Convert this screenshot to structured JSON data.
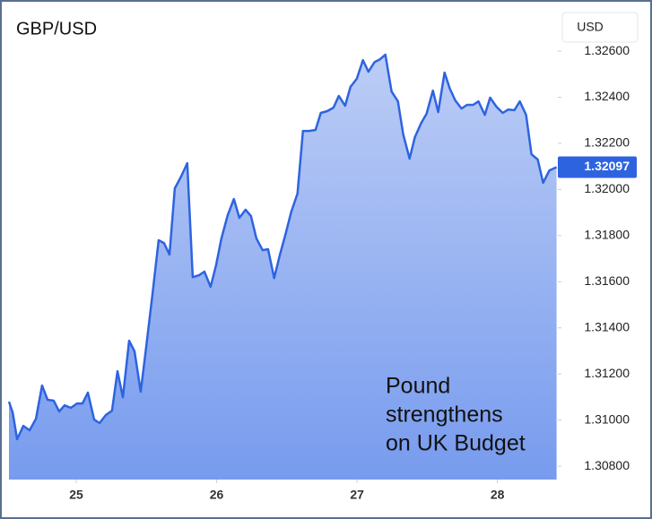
{
  "chart_data": {
    "type": "area",
    "title": "GBP/USD",
    "currency_button": "USD",
    "annotation": [
      "Pound",
      "strengthens",
      "on UK Budget"
    ],
    "x": [
      24.521,
      24.547,
      24.579,
      24.623,
      24.668,
      24.713,
      24.757,
      24.796,
      24.84,
      24.879,
      24.917,
      24.962,
      25.006,
      25.045,
      25.083,
      25.128,
      25.166,
      25.211,
      25.255,
      25.294,
      25.332,
      25.377,
      25.415,
      25.459,
      25.498,
      25.542,
      25.587,
      25.625,
      25.664,
      25.702,
      25.747,
      25.791,
      25.83,
      25.874,
      25.913,
      25.957,
      25.996,
      26.034,
      26.079,
      26.123,
      26.162,
      26.206,
      26.244,
      26.283,
      26.327,
      26.366,
      26.41,
      26.449,
      26.493,
      26.532,
      26.576,
      26.615,
      26.659,
      26.704,
      26.742,
      26.787,
      26.832,
      26.87,
      26.915,
      26.953,
      26.998,
      27.042,
      27.081,
      27.125,
      27.164,
      27.202,
      27.246,
      27.291,
      27.329,
      27.374,
      27.412,
      27.457,
      27.495,
      27.54,
      27.578,
      27.623,
      27.661,
      27.7,
      27.744,
      27.783,
      27.827,
      27.865,
      27.91,
      27.948,
      27.993,
      28.038,
      28.076,
      28.121,
      28.159,
      28.204,
      28.242,
      28.287,
      28.325,
      28.37,
      28.421
    ],
    "series": [
      {
        "name": "GBP/USD",
        "color": "#2e63e0",
        "values": [
          1.3108,
          1.31033,
          1.30917,
          1.30975,
          1.30956,
          1.31006,
          1.3115,
          1.31088,
          1.31084,
          1.31037,
          1.31064,
          1.31053,
          1.31072,
          1.31072,
          1.31119,
          1.31002,
          1.30987,
          1.31022,
          1.31041,
          1.31212,
          1.31099,
          1.31344,
          1.31298,
          1.31123,
          1.31317,
          1.31539,
          1.3178,
          1.31768,
          1.31718,
          1.32005,
          1.32056,
          1.32114,
          1.3162,
          1.31628,
          1.31644,
          1.31578,
          1.31671,
          1.31788,
          1.31889,
          1.31959,
          1.31877,
          1.31912,
          1.31885,
          1.31788,
          1.31737,
          1.31741,
          1.31616,
          1.31714,
          1.31811,
          1.31904,
          1.31982,
          1.32254,
          1.32254,
          1.32258,
          1.32332,
          1.3234,
          1.32355,
          1.32406,
          1.32363,
          1.32445,
          1.3248,
          1.32561,
          1.32511,
          1.32553,
          1.32565,
          1.32585,
          1.32425,
          1.32382,
          1.32239,
          1.32134,
          1.32227,
          1.32289,
          1.32328,
          1.32429,
          1.32336,
          1.32507,
          1.32437,
          1.32386,
          1.32351,
          1.32367,
          1.32367,
          1.32382,
          1.32324,
          1.32398,
          1.32359,
          1.32332,
          1.32347,
          1.32344,
          1.32382,
          1.32324,
          1.32153,
          1.3213,
          1.32029,
          1.32083,
          1.32097
        ]
      }
    ],
    "xlim": [
      24.521,
      28.43
    ],
    "xticks": [
      25,
      26,
      27,
      28
    ],
    "ylim": [
      1.30742,
      1.32783
    ],
    "yticks": [
      {
        "value": 1.308,
        "label": "1.30800"
      },
      {
        "value": 1.31,
        "label": "1.31000"
      },
      {
        "value": 1.312,
        "label": "1.31200"
      },
      {
        "value": 1.314,
        "label": "1.31400"
      },
      {
        "value": 1.316,
        "label": "1.31600"
      },
      {
        "value": 1.318,
        "label": "1.31800"
      },
      {
        "value": 1.32,
        "label": "1.32000"
      },
      {
        "value": 1.322,
        "label": "1.32200"
      },
      {
        "value": 1.324,
        "label": "1.32400"
      },
      {
        "value": 1.326,
        "label": "1.32600"
      }
    ],
    "grid": false
  }
}
